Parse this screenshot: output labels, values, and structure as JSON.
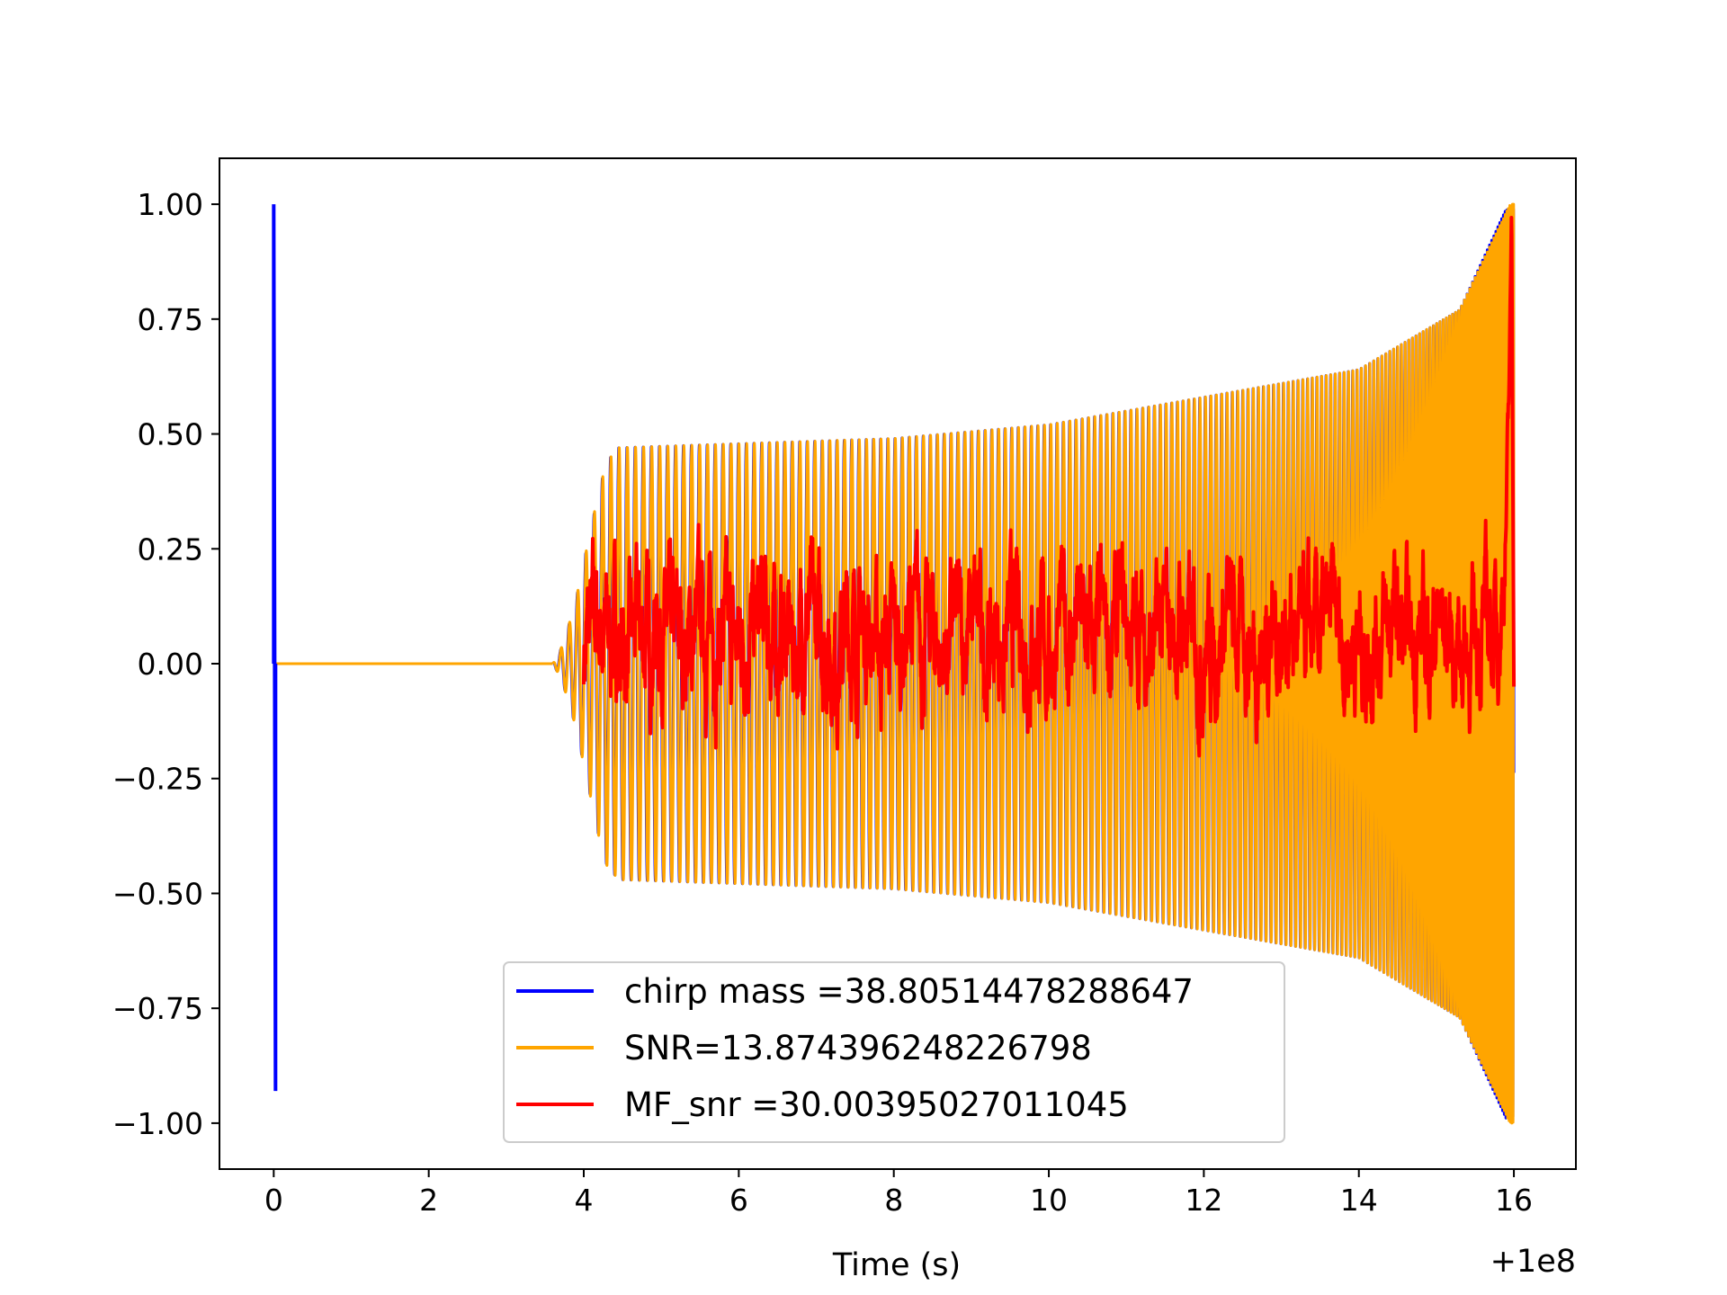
{
  "chart_data": {
    "type": "line",
    "xlabel": "Time (s)",
    "ylabel": "",
    "x_offset_label": "+1e8",
    "xlim": [
      -0.7,
      16.8
    ],
    "ylim": [
      -1.1,
      1.1
    ],
    "xticks": [
      0,
      2,
      4,
      6,
      8,
      10,
      12,
      14,
      16
    ],
    "xtick_labels": [
      "0",
      "2",
      "4",
      "6",
      "8",
      "10",
      "12",
      "14",
      "16"
    ],
    "yticks": [
      1.0,
      0.75,
      0.5,
      0.25,
      0.0,
      -0.25,
      -0.5,
      -0.75,
      -1.0
    ],
    "ytick_labels": [
      "1.00",
      "0.75",
      "0.50",
      "0.25",
      "0.00",
      "−0.25",
      "−0.50",
      "−0.75",
      "−1.00"
    ],
    "grid": false,
    "legend_position": "lower-center",
    "series": [
      {
        "name": "chirp mass =38.80514478288647",
        "color": "#0000ff",
        "kind": "chirp-template",
        "spike_x": 0.0,
        "spike_max": 1.0,
        "spike_min": -0.93,
        "onset_x": 3.6,
        "flat_x": 4.4,
        "end_x": 16.0,
        "envelope": [
          [
            3.6,
            0.0
          ],
          [
            3.7,
            0.03
          ],
          [
            3.8,
            0.08
          ],
          [
            3.9,
            0.14
          ],
          [
            4.0,
            0.22
          ],
          [
            4.1,
            0.3
          ],
          [
            4.2,
            0.38
          ],
          [
            4.3,
            0.44
          ],
          [
            4.45,
            0.47
          ],
          [
            8.0,
            0.49
          ],
          [
            10.0,
            0.52
          ],
          [
            12.0,
            0.58
          ],
          [
            14.0,
            0.64
          ],
          [
            15.3,
            0.77
          ],
          [
            15.9,
            0.99
          ]
        ]
      },
      {
        "name": "SNR=13.874396248226798",
        "color": "#ffa500",
        "kind": "chirp-signal",
        "baseline": [
          [
            0.0,
            0.0
          ],
          [
            3.6,
            0.0
          ]
        ],
        "onset_x": 3.6,
        "end_x": 16.0,
        "envelope": [
          [
            3.6,
            0.0
          ],
          [
            3.7,
            0.03
          ],
          [
            3.8,
            0.08
          ],
          [
            3.9,
            0.14
          ],
          [
            4.0,
            0.22
          ],
          [
            4.1,
            0.3
          ],
          [
            4.2,
            0.38
          ],
          [
            4.3,
            0.44
          ],
          [
            4.45,
            0.47
          ],
          [
            8.0,
            0.49
          ],
          [
            10.0,
            0.52
          ],
          [
            12.0,
            0.58
          ],
          [
            14.0,
            0.64
          ],
          [
            15.3,
            0.77
          ],
          [
            15.95,
            1.0
          ]
        ]
      },
      {
        "name": "MF_snr =30.00395027011045",
        "color": "#ff0000",
        "kind": "matched-filter-snr",
        "start_x": 4.0,
        "end_x": 16.0,
        "mean_level": 0.06,
        "peak_x": 15.97,
        "peak_y": 1.0
      }
    ]
  }
}
